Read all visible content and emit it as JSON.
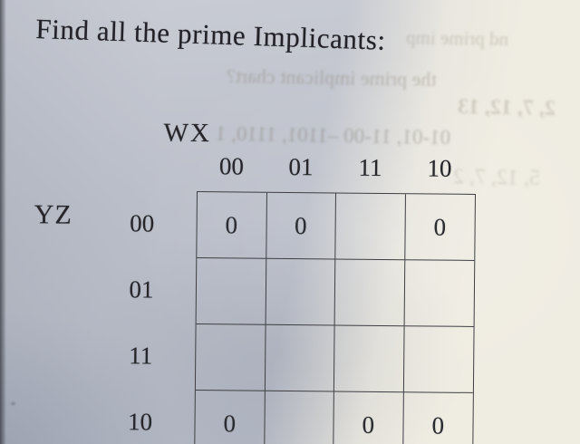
{
  "page": {
    "title": "Find all the prime Implicants:"
  },
  "kmap": {
    "col_var": "WX",
    "row_var": "YZ",
    "col_headers": [
      "00",
      "01",
      "11",
      "10"
    ],
    "row_headers": [
      "00",
      "01",
      "11",
      "10"
    ],
    "cells": [
      [
        "0",
        "0",
        "",
        "0"
      ],
      [
        "",
        "",
        "",
        ""
      ],
      [
        "",
        "",
        "",
        ""
      ],
      [
        "0",
        "",
        "0",
        "0"
      ]
    ]
  },
  "bleedthrough": {
    "lines": [
      "nd prime imp",
      "the prime implicant chart?",
      "2, 7, 12, 13",
      "01-01, 11-00 –1101, 1110, 1",
      "5, 12, 7, 2"
    ]
  },
  "colors": {
    "paper_gray": "#b8bcc6",
    "paper_cream": "#efece2",
    "ink": "#26262b",
    "grid_line": "#3f3f44"
  }
}
